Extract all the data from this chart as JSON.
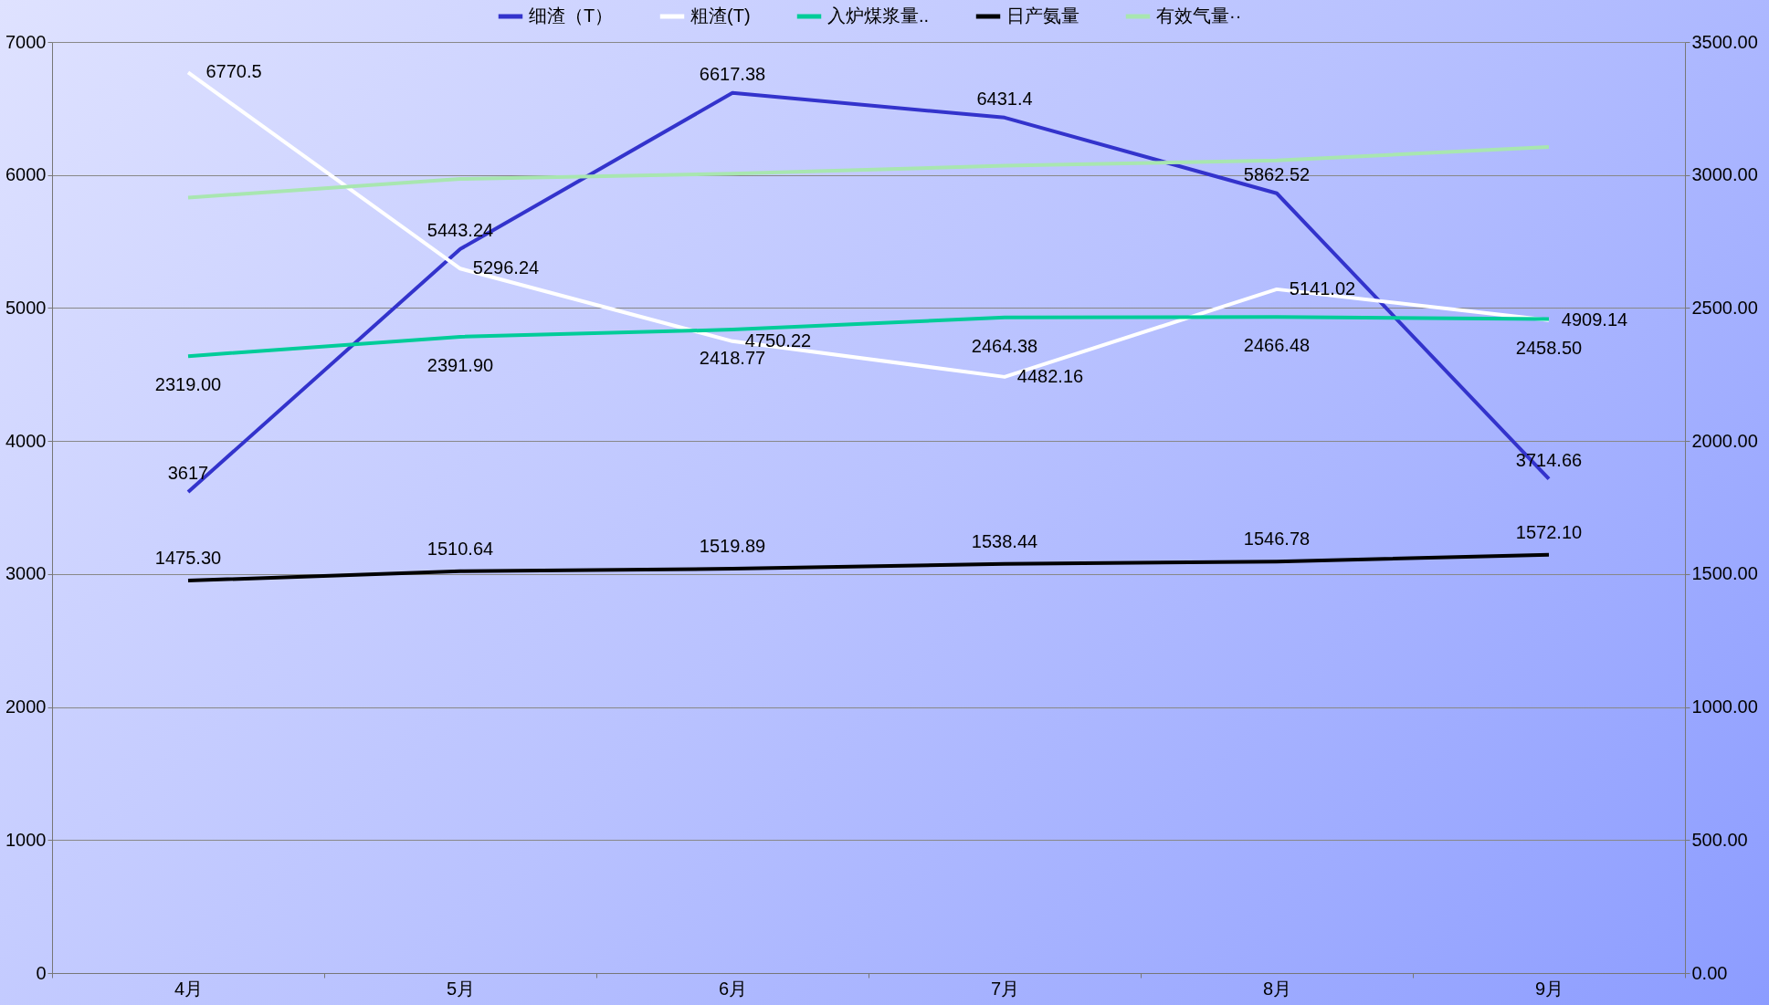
{
  "chart_data": {
    "type": "line",
    "categories": [
      "4月",
      "5月",
      "6月",
      "7月",
      "8月",
      "9月"
    ],
    "series": [
      {
        "name": "细渣（T）",
        "color": "#3333cc",
        "values": [
          3617,
          5443.24,
          6617.38,
          6431.4,
          5862.52,
          3714.66
        ],
        "value_labels": [
          "3617",
          "5443.24",
          "6617.38",
          "6431.4",
          "5862.52",
          "3714.66"
        ]
      },
      {
        "name": "粗渣(T)",
        "color": "#ffffff",
        "values": [
          6770.5,
          5296.24,
          4750.22,
          4482.16,
          5141.02,
          4909.14
        ],
        "value_labels": [
          "6770.5",
          "5296.24",
          "4750.22",
          "4482.16",
          "5141.02",
          "4909.14"
        ]
      },
      {
        "name": "入炉煤浆量..",
        "color": "#00cc99",
        "axis": "y2",
        "values": [
          2319.0,
          2391.9,
          2418.77,
          2464.38,
          2466.48,
          2458.5
        ],
        "value_labels": [
          "2319.00",
          "2391.90",
          "2418.77",
          "2464.38",
          "2466.48",
          "2458.50"
        ]
      },
      {
        "name": "日产氨量",
        "color": "#000000",
        "axis": "y2",
        "values": [
          1475.3,
          1510.64,
          1519.89,
          1538.44,
          1546.78,
          1572.1
        ],
        "value_labels": [
          "1475.30",
          "1510.64",
          "1519.89",
          "1538.44",
          "1546.78",
          "1572.10"
        ]
      },
      {
        "name": "有效气量··",
        "color": "#a8e6b0",
        "axis": "y2",
        "values": [
          2915,
          2985,
          3005,
          3035,
          3055,
          3105
        ]
      }
    ],
    "ylim": [
      0,
      7000
    ],
    "yticks": [
      0,
      1000,
      2000,
      3000,
      4000,
      5000,
      6000,
      7000
    ],
    "y2lim": [
      0,
      3500
    ],
    "y2ticks": [
      {
        "value": 0,
        "label": "0.00"
      },
      {
        "value": 500,
        "label": "500.00"
      },
      {
        "value": 1000,
        "label": "1000.00"
      },
      {
        "value": 1500,
        "label": "1500.00"
      },
      {
        "value": 2000,
        "label": "2000.00"
      },
      {
        "value": 2500,
        "label": "2500.00"
      },
      {
        "value": 3000,
        "label": "3000.00"
      },
      {
        "value": 3500,
        "label": "3500.00"
      }
    ],
    "grid": "y",
    "legend": "top",
    "marker": "none",
    "line_style": "solid"
  }
}
